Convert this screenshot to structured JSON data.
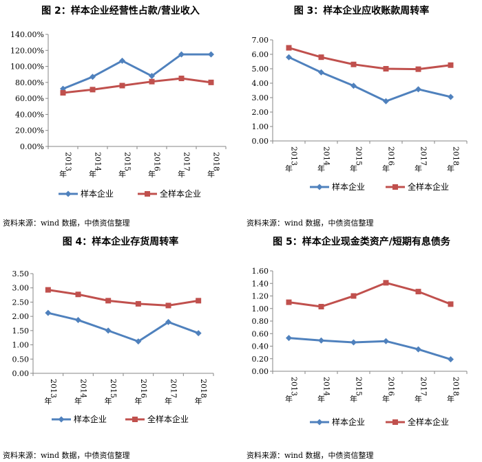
{
  "source_label": "资料来源：wind 数据，中债资信整理",
  "colors": {
    "series1": "#4F81BD",
    "series2": "#C0504D",
    "axis": "#868686"
  },
  "chart_data": [
    {
      "type": "line",
      "title": "图 2：样本企业经营性占款/营业收入",
      "categories": [
        "2013年",
        "2014年",
        "2015年",
        "2016年",
        "2017年",
        "2018年"
      ],
      "yticks": [
        "0.00%",
        "20.00%",
        "40.00%",
        "60.00%",
        "80.00%",
        "100.00%",
        "120.00%",
        "140.00%"
      ],
      "ylim": [
        0,
        140
      ],
      "series": [
        {
          "name": "样本企业",
          "marker": "diamond",
          "values": [
            72,
            87,
            107,
            88,
            115,
            115
          ]
        },
        {
          "name": "全样本企业",
          "marker": "square",
          "values": [
            67,
            71,
            76,
            81,
            85,
            80
          ]
        }
      ],
      "legend": "bottom"
    },
    {
      "type": "line",
      "title": "图 3：样本企业应收账款周转率",
      "categories": [
        "2013年",
        "2014年",
        "2015年",
        "2016年",
        "2017年",
        "2018年"
      ],
      "yticks": [
        "0.00",
        "1.00",
        "2.00",
        "3.00",
        "4.00",
        "5.00",
        "6.00",
        "7.00"
      ],
      "ylim": [
        0,
        7
      ],
      "series": [
        {
          "name": "样本企业",
          "marker": "diamond",
          "values": [
            5.8,
            4.75,
            3.82,
            2.75,
            3.58,
            3.05
          ]
        },
        {
          "name": "全样本企业",
          "marker": "square",
          "values": [
            6.45,
            5.8,
            5.3,
            5.0,
            4.97,
            5.25
          ]
        }
      ],
      "legend": "bottom"
    },
    {
      "type": "line",
      "title": "图 4：样本企业存货周转率",
      "categories": [
        "2013年",
        "2014年",
        "2015年",
        "2016年",
        "2017年",
        "2018年"
      ],
      "yticks": [
        "0.00",
        "0.50",
        "1.00",
        "1.50",
        "2.00",
        "2.50",
        "3.00",
        "3.50"
      ],
      "ylim": [
        0,
        3.5
      ],
      "series": [
        {
          "name": "样本企业",
          "marker": "diamond",
          "values": [
            2.12,
            1.87,
            1.5,
            1.12,
            1.8,
            1.41
          ]
        },
        {
          "name": "全样本企业",
          "marker": "square",
          "values": [
            2.93,
            2.77,
            2.55,
            2.44,
            2.38,
            2.55
          ]
        }
      ],
      "legend": "bottom"
    },
    {
      "type": "line",
      "title": "图 5：样本企业现金类资产/短期有息债务",
      "categories": [
        "2013年",
        "2014年",
        "2015年",
        "2016年",
        "2017年",
        "2018年"
      ],
      "yticks": [
        "0.00",
        "0.20",
        "0.40",
        "0.60",
        "0.80",
        "1.00",
        "1.20",
        "1.40",
        "1.60"
      ],
      "ylim": [
        0,
        1.6
      ],
      "series": [
        {
          "name": "样本企业",
          "marker": "diamond",
          "values": [
            0.53,
            0.49,
            0.46,
            0.48,
            0.35,
            0.19
          ]
        },
        {
          "name": "全样本企业",
          "marker": "square",
          "values": [
            1.1,
            1.03,
            1.2,
            1.41,
            1.27,
            1.07
          ]
        }
      ],
      "legend": "bottom"
    }
  ]
}
